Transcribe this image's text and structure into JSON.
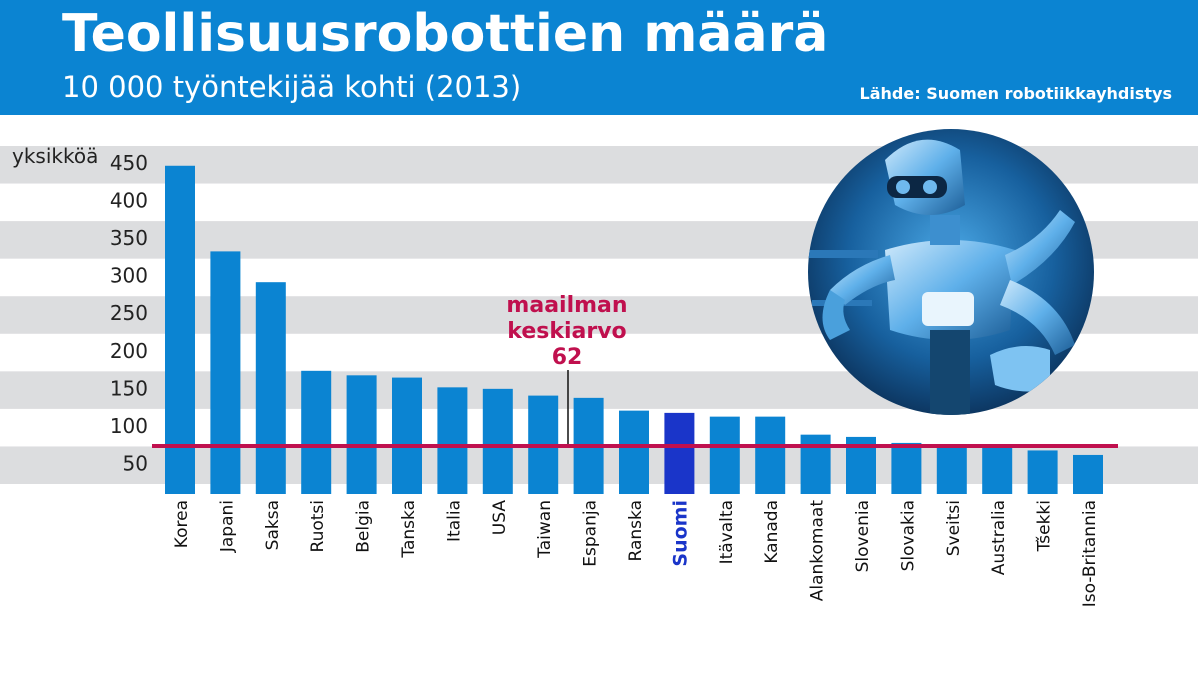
{
  "header": {
    "title": "Teollisuusrobottien määrä",
    "subtitle": "10 000 työntekijää kohti (2013)",
    "source": "Lähde: Suomen robotiikkayhdistys"
  },
  "colors": {
    "header_bg": "#0b84d2",
    "bar": "#0b84d2",
    "bar_highlight": "#1a35c9",
    "average_line": "#c0104e",
    "band": "#dcdddf"
  },
  "chart_data": {
    "type": "bar",
    "ylabel": "yksikköä",
    "ylim": [
      0,
      450
    ],
    "yticks": [
      50,
      100,
      150,
      200,
      250,
      300,
      350,
      400,
      450
    ],
    "categories": [
      "Korea",
      "Japani",
      "Saksa",
      "Ruotsi",
      "Belgia",
      "Tanska",
      "Italia",
      "USA",
      "Taiwan",
      "Espanja",
      "Ranska",
      "Suomi",
      "Itävalta",
      "Kanada",
      "Alankomaat",
      "Slovenia",
      "Slovakia",
      "Sveitsi",
      "Australia",
      "Tšekki",
      "Iso-Britannia"
    ],
    "values": [
      437,
      323,
      282,
      164,
      158,
      155,
      142,
      140,
      131,
      128,
      111,
      108,
      103,
      103,
      79,
      76,
      68,
      65,
      62,
      58,
      52
    ],
    "highlight": "Suomi",
    "reference_line": {
      "value": 62,
      "label_lines": [
        "maailman",
        "keskiarvo",
        "62"
      ]
    },
    "grid": "alternating horizontal bands",
    "image": "robot-photo"
  }
}
